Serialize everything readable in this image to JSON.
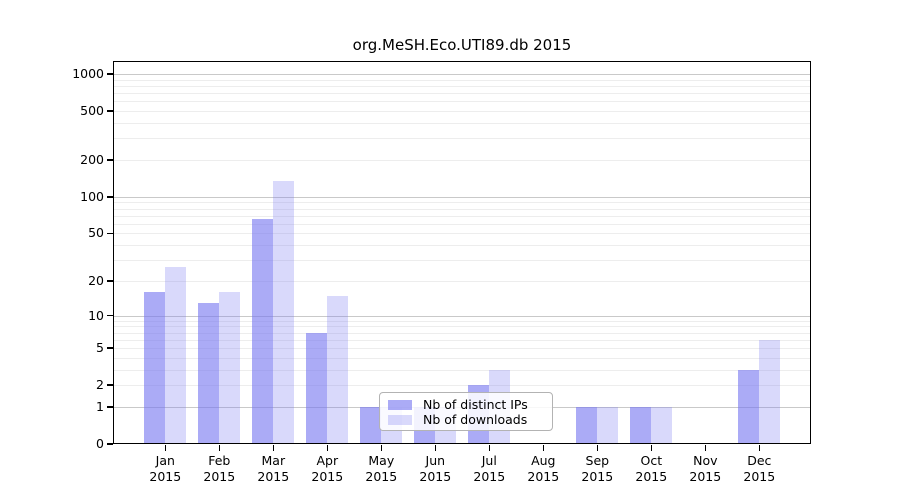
{
  "chart_data": {
    "type": "bar",
    "title": "org.MeSH.Eco.UTI89.db 2015",
    "categories": [
      "Jan",
      "Feb",
      "Mar",
      "Apr",
      "May",
      "Jun",
      "Jul",
      "Aug",
      "Sep",
      "Oct",
      "Nov",
      "Dec"
    ],
    "x_tick_second_line": "2015",
    "series": [
      {
        "name": "Nb of distinct IPs",
        "color": "rgba(120,120,240,0.62)",
        "values": [
          16,
          13,
          66,
          7,
          1,
          1,
          2,
          0,
          1,
          1,
          0,
          3
        ]
      },
      {
        "name": "Nb of downloads",
        "color": "rgba(120,120,240,0.28)",
        "values": [
          26,
          16,
          136,
          15,
          1,
          1,
          3,
          0,
          1,
          1,
          0,
          6
        ]
      }
    ],
    "yticks": [
      0,
      1,
      2,
      5,
      10,
      20,
      50,
      100,
      200,
      500,
      1000
    ],
    "ylim": [
      0,
      1100
    ],
    "yscale": "log10(1+y)",
    "xlabel": "",
    "ylabel": "",
    "grid": "horizontal, minor and major",
    "legend_position": "inside bottom-center-left",
    "colors": {
      "grid_minor": "#ededed",
      "grid_major": "#c9c9c9",
      "axis_frame": "#000000",
      "legend_border": "#b3b3b3"
    }
  }
}
